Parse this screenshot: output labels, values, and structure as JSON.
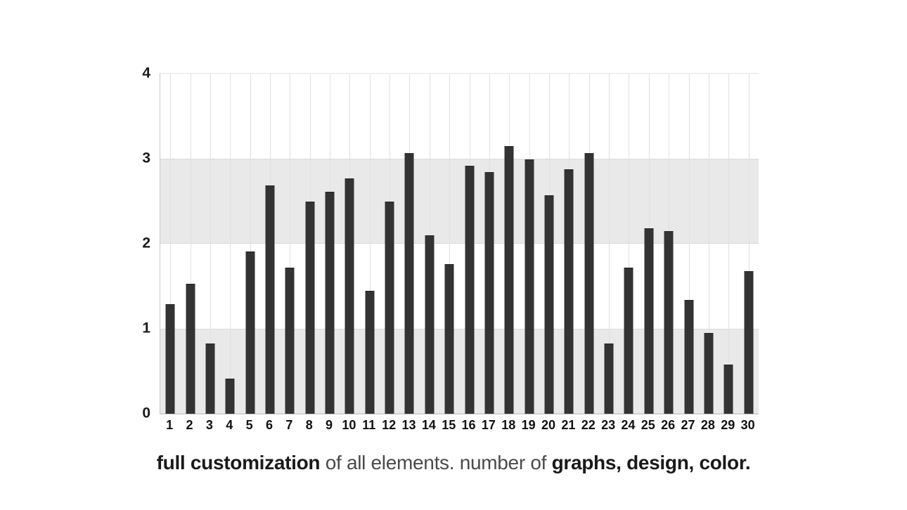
{
  "page": {
    "background": "#ffffff"
  },
  "caption": {
    "bold_lead": "full customization",
    "light_middle": " of all elements. number of ",
    "bold_tail": "graphs, design, color."
  },
  "chart_data": {
    "type": "bar",
    "title": "",
    "xlabel": "",
    "ylabel": "",
    "categories": [
      "1",
      "2",
      "3",
      "4",
      "5",
      "6",
      "7",
      "8",
      "9",
      "10",
      "11",
      "12",
      "13",
      "14",
      "15",
      "16",
      "17",
      "18",
      "19",
      "20",
      "21",
      "22",
      "23",
      "24",
      "25",
      "26",
      "27",
      "28",
      "29",
      "30"
    ],
    "values": [
      1.29,
      1.53,
      0.83,
      0.41,
      1.91,
      2.69,
      1.72,
      2.5,
      2.61,
      2.77,
      1.45,
      2.5,
      3.07,
      2.1,
      1.76,
      2.92,
      2.84,
      3.15,
      2.99,
      2.57,
      2.88,
      3.07,
      0.83,
      1.72,
      2.18,
      2.15,
      1.34,
      0.95,
      0.58,
      1.68
    ],
    "ylim": [
      0,
      4
    ],
    "yticks": [
      0,
      1,
      2,
      3,
      4
    ],
    "shaded_bands": [
      [
        0,
        1
      ],
      [
        2,
        3
      ]
    ],
    "grid": "vertical gridline per category, shaded horizontal bands",
    "legend": "none",
    "bar_color": "#333333",
    "band_color": "#e9e9e9",
    "gridline_color": "#e0e0e0",
    "axis_label_color": "#1b1b1b"
  }
}
